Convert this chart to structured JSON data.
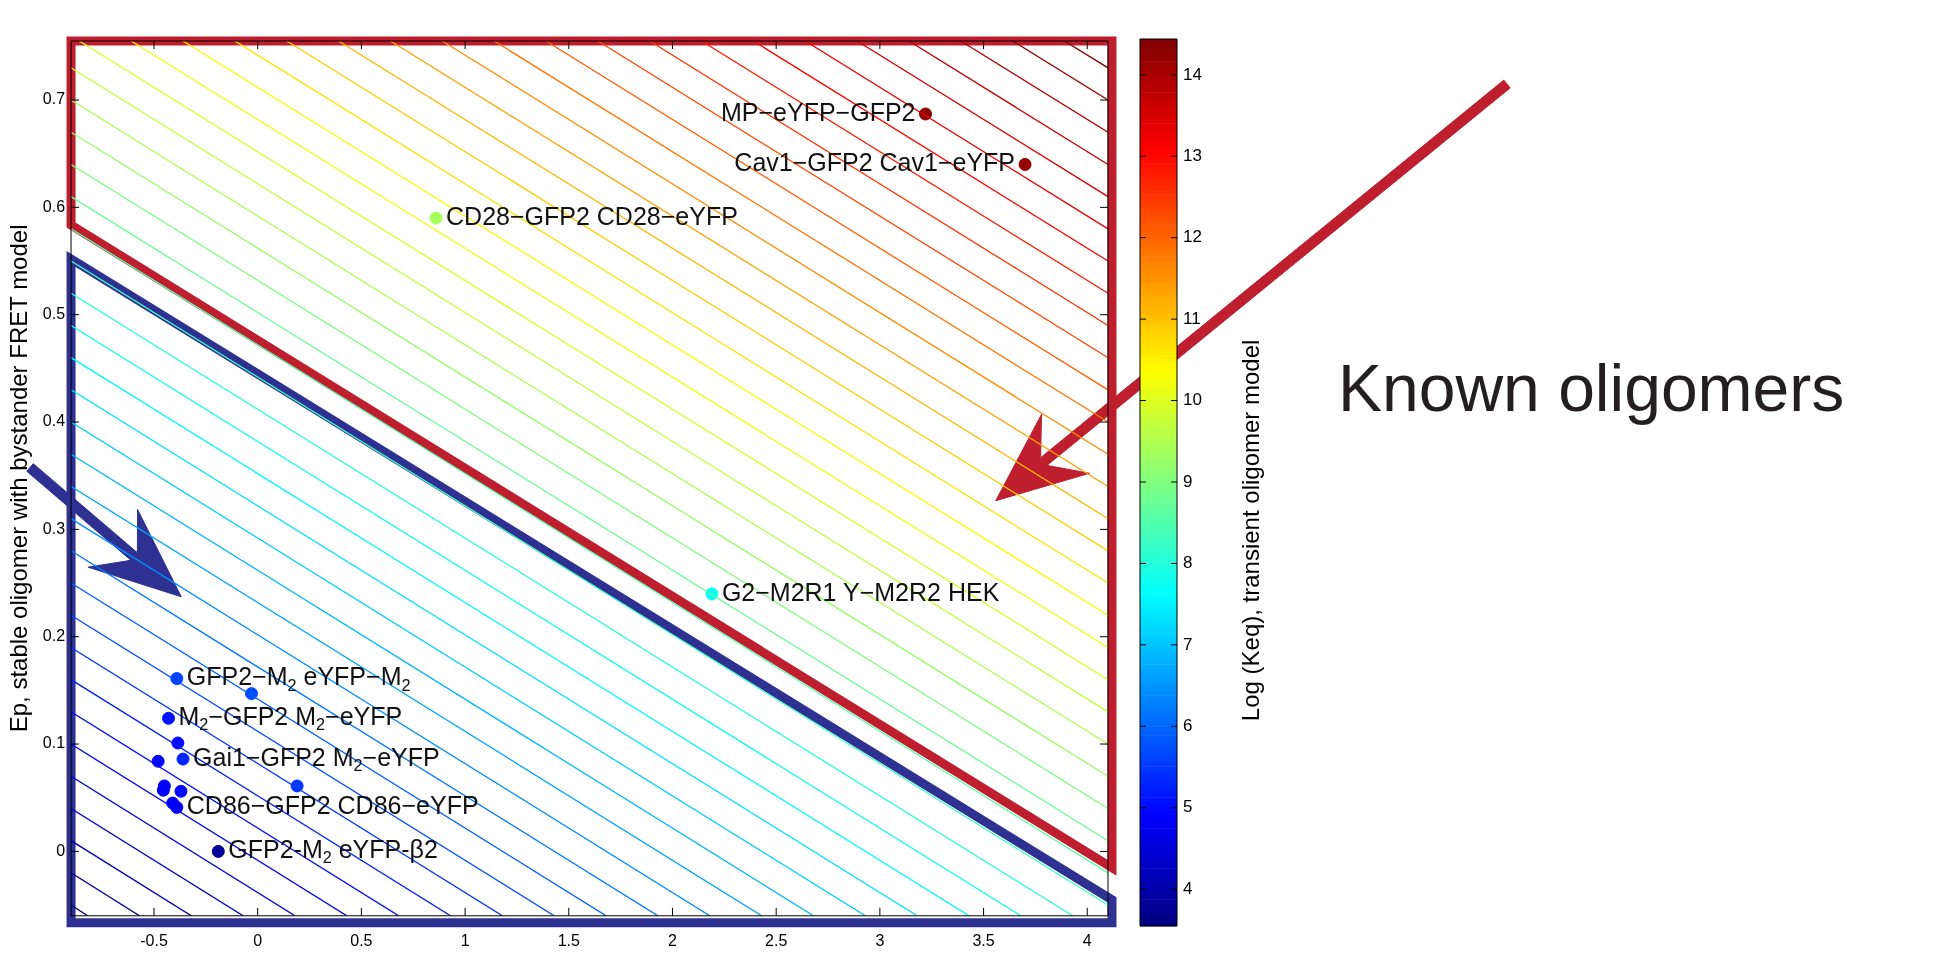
{
  "chart_data": {
    "type": "scatter",
    "ylabel": "Ep, stable oligomer with bystander FRET model",
    "clabel": "Log (Keq), transient oligomer model",
    "xlim": [
      -0.9,
      4.1
    ],
    "xticks": [
      -0.5,
      0,
      0.5,
      1,
      1.5,
      2,
      2.5,
      3,
      3.5,
      4
    ],
    "ylim": [
      -0.06,
      0.755
    ],
    "yticks": [
      0,
      0.1,
      0.2,
      0.3,
      0.4,
      0.5,
      0.6,
      0.7
    ],
    "clim": [
      3.55,
      14.44
    ],
    "cticks": [
      4,
      5,
      6,
      7,
      8,
      9,
      10,
      11,
      12,
      13,
      14
    ],
    "legend": false,
    "grid": false,
    "series": [
      {
        "type": "line",
        "x": [
          -0.9,
          -0.82
        ],
        "values": [
          -0.05,
          -0.06
        ],
        "color": "#000084"
      },
      {
        "type": "line",
        "x": [
          -0.9,
          -0.57
        ],
        "values": [
          -0.02,
          -0.06
        ],
        "color": "#00009b"
      },
      {
        "type": "line",
        "x": [
          -0.9,
          -0.32
        ],
        "values": [
          0.01,
          -0.06
        ],
        "color": "#0000b0"
      },
      {
        "type": "line",
        "x": [
          -0.9,
          -0.07
        ],
        "values": [
          0.04,
          -0.06
        ],
        "color": "#0000c7"
      },
      {
        "type": "line",
        "x": [
          -0.9,
          0.18
        ],
        "values": [
          0.07,
          -0.06
        ],
        "color": "#0000dc"
      },
      {
        "type": "line",
        "x": [
          -0.9,
          0.43
        ],
        "values": [
          0.1,
          -0.06
        ],
        "color": "#0000f3"
      },
      {
        "type": "line",
        "x": [
          -0.9,
          0.68
        ],
        "values": [
          0.13,
          -0.06
        ],
        "color": "#0009ff"
      },
      {
        "type": "line",
        "x": [
          -0.9,
          0.93
        ],
        "values": [
          0.16,
          -0.06
        ],
        "color": "#0020ff"
      },
      {
        "type": "line",
        "x": [
          -0.9,
          1.18
        ],
        "values": [
          0.19,
          -0.06
        ],
        "color": "#0035ff"
      },
      {
        "type": "line",
        "x": [
          -0.9,
          1.43
        ],
        "values": [
          0.22,
          -0.06
        ],
        "color": "#004cff"
      },
      {
        "type": "line",
        "x": [
          -0.9,
          1.68
        ],
        "values": [
          0.25,
          -0.06
        ],
        "color": "#0061ff"
      },
      {
        "type": "line",
        "x": [
          -0.9,
          1.93
        ],
        "values": [
          0.28,
          -0.06
        ],
        "color": "#0078ff"
      },
      {
        "type": "line",
        "x": [
          -0.9,
          2.18
        ],
        "values": [
          0.31,
          -0.06
        ],
        "color": "#008dff"
      },
      {
        "type": "line",
        "x": [
          -0.9,
          2.43
        ],
        "values": [
          0.34,
          -0.06
        ],
        "color": "#00a4ff"
      },
      {
        "type": "line",
        "x": [
          -0.9,
          2.68
        ],
        "values": [
          0.37,
          -0.06
        ],
        "color": "#00b9ff"
      },
      {
        "type": "line",
        "x": [
          -0.9,
          2.93
        ],
        "values": [
          0.4,
          -0.06
        ],
        "color": "#00d0ff"
      },
      {
        "type": "line",
        "x": [
          -0.9,
          3.18
        ],
        "values": [
          0.43,
          -0.06
        ],
        "color": "#00e5ff"
      },
      {
        "type": "line",
        "x": [
          -0.9,
          3.43
        ],
        "values": [
          0.46,
          -0.06
        ],
        "color": "#00fcff"
      },
      {
        "type": "line",
        "x": [
          -0.9,
          3.68
        ],
        "values": [
          0.49,
          -0.06
        ],
        "color": "#12ffed"
      },
      {
        "type": "line",
        "x": [
          -0.9,
          3.93
        ],
        "values": [
          0.52,
          -0.06
        ],
        "color": "#29ffd6"
      },
      {
        "type": "line",
        "x": [
          -0.9,
          4.1
        ],
        "values": [
          0.55,
          -0.05
        ],
        "color": "#3effc1"
      },
      {
        "type": "line",
        "x": [
          -0.9,
          4.1
        ],
        "values": [
          0.58,
          -0.02
        ],
        "color": "#55ffaa"
      },
      {
        "type": "line",
        "x": [
          -0.9,
          4.1
        ],
        "values": [
          0.61,
          0.01
        ],
        "color": "#6aff95"
      },
      {
        "type": "line",
        "x": [
          -0.9,
          4.1
        ],
        "values": [
          0.64,
          0.04
        ],
        "color": "#81ff7e"
      },
      {
        "type": "line",
        "x": [
          -0.9,
          4.1
        ],
        "values": [
          0.67,
          0.07
        ],
        "color": "#96ff69"
      },
      {
        "type": "line",
        "x": [
          -0.9,
          4.1
        ],
        "values": [
          0.7,
          0.1
        ],
        "color": "#adff52"
      },
      {
        "type": "line",
        "x": [
          -0.9,
          4.1
        ],
        "values": [
          0.73,
          0.13
        ],
        "color": "#c3ff3c"
      },
      {
        "type": "line",
        "x": [
          -0.86,
          4.1
        ],
        "values": [
          0.755,
          0.16
        ],
        "color": "#d9ff26"
      },
      {
        "type": "line",
        "x": [
          -0.61,
          4.1
        ],
        "values": [
          0.755,
          0.19
        ],
        "color": "#eeff11"
      },
      {
        "type": "line",
        "x": [
          -0.36,
          4.1
        ],
        "values": [
          0.755,
          0.22
        ],
        "color": "#fff900"
      },
      {
        "type": "line",
        "x": [
          -0.11,
          4.1
        ],
        "values": [
          0.755,
          0.25
        ],
        "color": "#ffe300"
      },
      {
        "type": "line",
        "x": [
          0.14,
          4.1
        ],
        "values": [
          0.755,
          0.28
        ],
        "color": "#ffcd00"
      },
      {
        "type": "line",
        "x": [
          0.39,
          4.1
        ],
        "values": [
          0.755,
          0.31
        ],
        "color": "#ffb700"
      },
      {
        "type": "line",
        "x": [
          0.64,
          4.1
        ],
        "values": [
          0.755,
          0.34
        ],
        "color": "#ffa100"
      },
      {
        "type": "line",
        "x": [
          0.89,
          4.1
        ],
        "values": [
          0.755,
          0.37
        ],
        "color": "#ff8b00"
      },
      {
        "type": "line",
        "x": [
          1.14,
          4.1
        ],
        "values": [
          0.755,
          0.4
        ],
        "color": "#ff7500"
      },
      {
        "type": "line",
        "x": [
          1.39,
          4.1
        ],
        "values": [
          0.755,
          0.43
        ],
        "color": "#ff5f00"
      },
      {
        "type": "line",
        "x": [
          1.64,
          4.1
        ],
        "values": [
          0.755,
          0.46
        ],
        "color": "#ff4900"
      },
      {
        "type": "line",
        "x": [
          1.89,
          4.1
        ],
        "values": [
          0.755,
          0.49
        ],
        "color": "#ff3400"
      },
      {
        "type": "line",
        "x": [
          2.14,
          4.1
        ],
        "values": [
          0.755,
          0.52
        ],
        "color": "#ff1d00"
      },
      {
        "type": "line",
        "x": [
          2.39,
          4.1
        ],
        "values": [
          0.755,
          0.55
        ],
        "color": "#ff0700"
      },
      {
        "type": "line",
        "x": [
          2.64,
          4.1
        ],
        "values": [
          0.755,
          0.58
        ],
        "color": "#f00000"
      },
      {
        "type": "line",
        "x": [
          2.89,
          4.1
        ],
        "values": [
          0.755,
          0.61
        ],
        "color": "#da0000"
      },
      {
        "type": "line",
        "x": [
          3.14,
          4.1
        ],
        "values": [
          0.755,
          0.64
        ],
        "color": "#c40000"
      },
      {
        "type": "line",
        "x": [
          3.39,
          4.1
        ],
        "values": [
          0.755,
          0.67
        ],
        "color": "#ae0000"
      },
      {
        "type": "line",
        "x": [
          3.64,
          4.1
        ],
        "values": [
          0.755,
          0.7
        ],
        "color": "#980000"
      },
      {
        "type": "line",
        "x": [
          3.89,
          4.1
        ],
        "values": [
          0.755,
          0.73
        ],
        "color": "#820000"
      },
      {
        "type": "scatter",
        "marker": "circle",
        "x": [
          3.22,
          3.7,
          0.86,
          2.19,
          -0.39,
          -0.03,
          -0.43,
          -0.385,
          -0.48,
          -0.36,
          -0.45,
          -0.455,
          -0.37,
          0.19,
          -0.41,
          -0.39,
          -0.19
        ],
        "values": [
          0.687,
          0.64,
          0.59,
          0.24,
          0.161,
          0.147,
          0.124,
          0.101,
          0.084,
          0.086,
          0.061,
          0.057,
          0.056,
          0.061,
          0.045,
          0.041,
          0.0
        ],
        "cvalues": [
          14.3,
          14.2,
          9.4,
          7.7,
          5.6,
          5.7,
          5.1,
          5.0,
          5.0,
          5.3,
          4.8,
          4.8,
          5.0,
          5.5,
          4.8,
          4.8,
          3.8
        ],
        "colors": [
          "#8c0000",
          "#960000",
          "#a5ff5a",
          "#06fff9",
          "#0040ff",
          "#004aff",
          "#0012ff",
          "#0008ff",
          "#0008ff",
          "#0024ff",
          "#0000f5",
          "#0000f5",
          "#0008ff",
          "#0037ff",
          "#0000f5",
          "#0000f5",
          "#000097"
        ]
      }
    ],
    "annotations": [
      {
        "text": "MP−eYFP−GFP2",
        "x": 3.22,
        "y": 0.687
      },
      {
        "text": "Cav1−GFP2 Cav1−eYFP",
        "x": 3.7,
        "y": 0.64
      },
      {
        "text": "CD28−GFP2 CD28−eYFP",
        "x": 0.86,
        "y": 0.59
      },
      {
        "text": "G2−M2R1 Y−M2R2 HEK",
        "x": 2.19,
        "y": 0.24
      },
      {
        "text": "GFP2−M$_{2}$ eYFP−M$_{2}$",
        "x": -0.39,
        "y": 0.161
      },
      {
        "text": "M$_{2}$−GFP2 M$_{2}$−eYFP",
        "x": -0.43,
        "y": 0.124
      },
      {
        "text": "Gai1−GFP2 M$_{2}$−eYFP",
        "x": -0.36,
        "y": 0.086
      },
      {
        "text": "CD86−GFP2 CD86−eYFP",
        "x": -0.39,
        "y": 0.041
      },
      {
        "text": "GFP2-M$_{2}$ eYFP-β2",
        "x": -0.19,
        "y": 0.0
      },
      "Known oligomers"
    ]
  }
}
